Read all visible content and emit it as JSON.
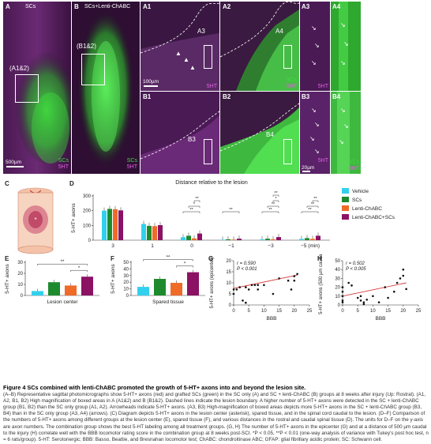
{
  "top_panels": {
    "A": {
      "label": "A",
      "title": "SCs",
      "box_label": "(A1&2)",
      "scale": "500µm",
      "ch1": "SCs",
      "ch2": "5HT"
    },
    "B": {
      "label": "B",
      "title": "SCs+Lenti-ChABC",
      "box_label": "(B1&2)",
      "ch1": "SCs",
      "ch2": "5HT"
    },
    "A1": {
      "label": "A1",
      "box_label": "A3",
      "scale": "100µm",
      "ch": "5HT"
    },
    "A2": {
      "label": "A2",
      "box_label": "A4",
      "ch1": "SCs",
      "ch2": "5HT"
    },
    "A3": {
      "label": "A3",
      "ch": "5HT"
    },
    "A4": {
      "label": "A4"
    },
    "B1": {
      "label": "B1",
      "box_label": "B3"
    },
    "B2": {
      "label": "B2",
      "box_label": "B4"
    },
    "B3": {
      "label": "B3",
      "ch": "5HT",
      "scale": "20µm"
    },
    "B4": {
      "label": "B4",
      "ch1": "SCs",
      "ch2": "5HT"
    }
  },
  "colors": {
    "vehicle": "#33d0ee",
    "scs": "#1e8a2e",
    "lenti": "#f06a28",
    "combo": "#8c1264",
    "green_fluor": "#3fdc3f",
    "magenta_fluor": "#d648d6"
  },
  "panel_C": {
    "label": "C"
  },
  "chart_data": [
    {
      "id": "D",
      "label": "D",
      "type": "bar",
      "title": "Distance relative to the lesion",
      "ylabel": "5-HT+ axons",
      "xlabel": "",
      "categories": [
        "3",
        "1",
        "0",
        "−1",
        "−3",
        "−5 (min)"
      ],
      "ylim": [
        0,
        300
      ],
      "yticks": [
        0,
        100,
        200,
        300
      ],
      "series": [
        {
          "name": "Vehicle",
          "color": "#33d0ee",
          "values": [
            200,
            110,
            20,
            3,
            5,
            8
          ]
        },
        {
          "name": "SCs",
          "color": "#1e8a2e",
          "values": [
            212,
            97,
            30,
            6,
            10,
            14
          ]
        },
        {
          "name": "Lenti-ChABC",
          "color": "#f06a28",
          "values": [
            210,
            95,
            12,
            4,
            6,
            9
          ]
        },
        {
          "name": "Lenti-ChABC+SCs",
          "color": "#8c1264",
          "values": [
            202,
            102,
            45,
            10,
            21,
            30
          ]
        }
      ],
      "brackets": [
        {
          "cat": 2,
          "from": 0,
          "to": 3,
          "level": 0,
          "label": "**"
        },
        {
          "cat": 2,
          "from": 1,
          "to": 3,
          "level": 1,
          "label": "*"
        },
        {
          "cat": 2,
          "from": 2,
          "to": 3,
          "level": 2,
          "label": "**"
        },
        {
          "cat": 3,
          "from": 0,
          "to": 3,
          "level": 0,
          "label": "**"
        },
        {
          "cat": 4,
          "from": 0,
          "to": 3,
          "level": 0,
          "label": "**"
        },
        {
          "cat": 4,
          "from": 1,
          "to": 3,
          "level": 1,
          "label": "**"
        },
        {
          "cat": 4,
          "from": 2,
          "to": 3,
          "level": 2,
          "label": "*"
        },
        {
          "cat": 4,
          "from": 2,
          "to": 3,
          "level": 3,
          "label": "**"
        },
        {
          "cat": 5,
          "from": 0,
          "to": 3,
          "level": 0,
          "label": "**"
        },
        {
          "cat": 5,
          "from": 1,
          "to": 3,
          "level": 1,
          "label": "**"
        },
        {
          "cat": 5,
          "from": 2,
          "to": 3,
          "level": 2,
          "label": "**"
        }
      ],
      "legend": "right"
    },
    {
      "id": "E",
      "label": "E",
      "type": "bar",
      "ylabel": "5-HT+ axons",
      "xlabel": "Lesion center",
      "ylim": [
        0,
        30
      ],
      "yticks": [
        0,
        10,
        20,
        30
      ],
      "values": [
        4,
        12,
        9,
        17
      ],
      "brackets": [
        {
          "from": 0,
          "to": 3,
          "level": 1,
          "label": "**"
        },
        {
          "from": 2,
          "to": 3,
          "level": 0,
          "label": "*"
        }
      ]
    },
    {
      "id": "F",
      "label": "F",
      "type": "bar",
      "ylabel": "5-HT+ axons",
      "xlabel": "Spared tissue",
      "ylim": [
        0,
        50
      ],
      "yticks": [
        0,
        10,
        20,
        30,
        40,
        50
      ],
      "values": [
        13,
        25,
        19,
        35
      ],
      "brackets": [
        {
          "from": 0,
          "to": 3,
          "level": 1,
          "label": "**"
        },
        {
          "from": 2,
          "to": 3,
          "level": 0,
          "label": "*"
        }
      ]
    },
    {
      "id": "G",
      "label": "G",
      "type": "scatter",
      "ylabel": "5-HT+ axons (epicenter)",
      "xlabel": "BBB",
      "xlim": [
        0,
        25
      ],
      "xticks": [
        0,
        5,
        10,
        15,
        20,
        25
      ],
      "ylim": [
        0,
        20
      ],
      "yticks": [
        0,
        5,
        10,
        15,
        20
      ],
      "stat1": "r = 0.590",
      "stat2": "P < 0.001",
      "points": [
        [
          0,
          7
        ],
        [
          0,
          5
        ],
        [
          1,
          7
        ],
        [
          2,
          8
        ],
        [
          4,
          8
        ],
        [
          5,
          7
        ],
        [
          6,
          9
        ],
        [
          7,
          9
        ],
        [
          8,
          9
        ],
        [
          8,
          7
        ],
        [
          10,
          9
        ],
        [
          13,
          5
        ],
        [
          15,
          12
        ],
        [
          18,
          11
        ],
        [
          19,
          7
        ],
        [
          20,
          11
        ],
        [
          20,
          13
        ],
        [
          21,
          14
        ],
        [
          3,
          2
        ],
        [
          4,
          1
        ]
      ],
      "fit": [
        [
          0,
          7.5
        ],
        [
          21,
          13.5
        ]
      ]
    },
    {
      "id": "H",
      "label": "H",
      "type": "scatter",
      "ylabel": "5-HT+ axons (500 µm caudal)",
      "xlabel": "BBB",
      "xlim": [
        0,
        25
      ],
      "xticks": [
        0,
        5,
        10,
        15,
        20,
        25
      ],
      "ylim": [
        0,
        50
      ],
      "yticks": [
        0,
        10,
        20,
        30,
        40,
        50
      ],
      "stat1": "r = 0.502",
      "stat2": "P < 0.005",
      "points": [
        [
          0,
          5
        ],
        [
          0,
          10
        ],
        [
          0,
          15
        ],
        [
          0,
          20
        ],
        [
          0,
          3
        ],
        [
          2,
          25
        ],
        [
          3,
          22
        ],
        [
          5,
          8
        ],
        [
          6,
          10
        ],
        [
          6,
          5
        ],
        [
          7,
          3
        ],
        [
          8,
          6
        ],
        [
          10,
          10
        ],
        [
          12,
          3
        ],
        [
          14,
          20
        ],
        [
          15,
          8
        ],
        [
          17,
          15
        ],
        [
          18,
          25
        ],
        [
          19,
          30
        ],
        [
          20,
          33
        ],
        [
          20,
          40
        ],
        [
          21,
          18
        ],
        [
          7,
          1
        ]
      ],
      "fit": [
        [
          0,
          10
        ],
        [
          21,
          25
        ]
      ]
    }
  ],
  "caption": {
    "title": "Figure 4  SCs combined with lenti-ChABC promoted the growth of 5-HT+ axons into and beyond the lesion site.",
    "body": "(A–B) Representative sagittal photomicrographs show 5-HT+ axons (red) and grafted SCs (green) in the SC only (A) and SC + lenti-ChABC (B) groups at 8 weeks after injury (Up: Rostral). (A1, A2, B1, B2) High magnification of boxed areas in A (A1&2) and B (B1&2). Dashed lines indicate the lesion boundary. A higher number of 5-HT+ axons were detected in the SC + lenti-ChABC group (B1, B2) than the SC only group (A1, A2). Arrowheads indicate 5-HT+ axons. (A3, B3) High-magnification of boxed areas depicts more 5-HT+ axons in the SC + lenti-ChABC group (B3, B4) than in the SC only group (A3, A4) (arrows). (C) Diagram depicts 5-HT+ axons in the lesion center (asterisk), spared tissue, and in the spinal cord caudal to the lesion. (D–F) Comparison of the numbers of 5-HT+ axons among different groups at the lesion center (E), spared tissue (F), and various distances in the rostral and caudal spinal tissue (D). The units for D–F on the y-axis are axon numbers. The combination group shows the best 5-HT labeling among all treatment groups. (G, H) The number of 5-HT+ axons in the epicenter (G) and at a distance of 500 µm caudal to the injury (H) correlate well with the BBB locomotor rating score in the combination group at 8 weeks post-SCI. *P < 0.05, **P < 0.01 (one-way analysis of variance with Tukey's post hoc test, n = 6 rats/group). 5-HT: Serotonergic; BBB: Basso, Beattie, and Bresnahan locomotor test; ChABC: chondroitinase ABC; GFAP: glial fibrillary acidic protein; SC: Schwann cell."
  }
}
